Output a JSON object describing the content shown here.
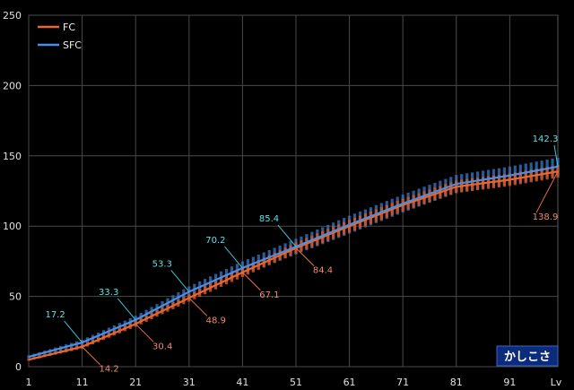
{
  "chart_data": {
    "type": "line",
    "title": "",
    "xlabel": "Lv",
    "ylabel": "",
    "xlim": [
      1,
      100
    ],
    "ylim": [
      0,
      250
    ],
    "grid": true,
    "legend_position": "top-left",
    "x_ticks": [
      "1",
      "11",
      "21",
      "31",
      "41",
      "51",
      "61",
      "71",
      "81",
      "91"
    ],
    "y_ticks": [
      "0",
      "50",
      "100",
      "150",
      "200",
      "250"
    ],
    "x_axis_label": "Lv",
    "x": [
      1,
      11,
      21,
      31,
      41,
      51,
      61,
      71,
      81,
      91,
      100
    ],
    "series": [
      {
        "name": "FC",
        "color": "#e8682c",
        "values": [
          5,
          14.2,
          30.4,
          48.9,
          67.1,
          84.4,
          100,
          115,
          128,
          133,
          138.9
        ]
      },
      {
        "name": "SFC",
        "color": "#4a8ee6",
        "values": [
          7,
          17.2,
          33.3,
          53.3,
          70.2,
          85.4,
          101,
          116,
          130,
          136,
          142.3
        ]
      }
    ],
    "annotations": {
      "FC": [
        {
          "x": 11,
          "y": 14.2,
          "label": "14.2"
        },
        {
          "x": 21,
          "y": 30.4,
          "label": "30.4"
        },
        {
          "x": 31,
          "y": 48.9,
          "label": "48.9"
        },
        {
          "x": 41,
          "y": 67.1,
          "label": "67.1"
        },
        {
          "x": 51,
          "y": 84.4,
          "label": "84.4"
        },
        {
          "x": 100,
          "y": 138.9,
          "label": "138.9"
        }
      ],
      "SFC": [
        {
          "x": 11,
          "y": 17.2,
          "label": "17.2"
        },
        {
          "x": 21,
          "y": 33.3,
          "label": "33.3"
        },
        {
          "x": 31,
          "y": 53.3,
          "label": "53.3"
        },
        {
          "x": 41,
          "y": 70.2,
          "label": "70.2"
        },
        {
          "x": 51,
          "y": 85.4,
          "label": "85.4"
        },
        {
          "x": 100,
          "y": 142.3,
          "label": "142.3"
        }
      ]
    },
    "badge": "かしこさ"
  }
}
